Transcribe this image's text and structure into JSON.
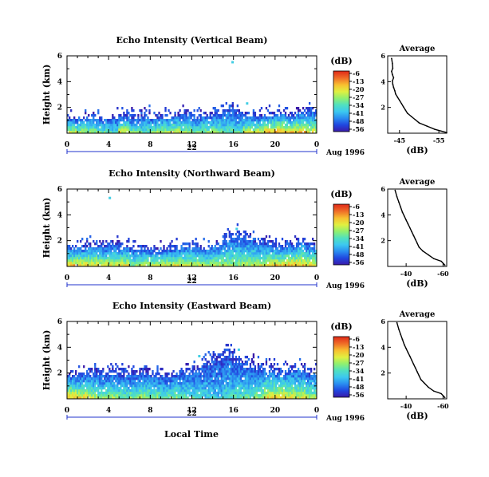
{
  "colors": {
    "background": "#ffffff",
    "axes": "#000000",
    "date_bar": "#2233cc",
    "colormap": [
      "#3a1aa8",
      "#2046e0",
      "#2a8cf0",
      "#3cc8f0",
      "#50e0c0",
      "#90f070",
      "#e0f040",
      "#f8c030",
      "#f07028",
      "#e02818"
    ]
  },
  "figure": {
    "date_label": "Aug 1996",
    "xlabel": "Local Time"
  },
  "chart_data": [
    {
      "type": "heatmap",
      "title": "Echo Intensity (Vertical Beam)",
      "ylabel": "Height (km)",
      "x_ticks": [
        "0",
        "4",
        "8",
        "12",
        "16",
        "20",
        "0"
      ],
      "xlim_hours": [
        0,
        24
      ],
      "y_ticks": [
        "2",
        "4",
        "6"
      ],
      "ylim_km": [
        0,
        6
      ],
      "day_label": "22",
      "colorbar": {
        "unit": "(dB)",
        "ticks": [
          "-6",
          "-13",
          "-20",
          "-27",
          "-34",
          "-41",
          "-48",
          "-56"
        ],
        "range": [
          -56,
          -6
        ]
      },
      "echo_top_km": [
        1.3,
        1.4,
        1.5,
        1.4,
        1.5,
        1.6,
        1.5,
        1.7,
        1.4,
        1.5,
        1.6,
        1.8,
        1.5,
        1.7,
        1.9,
        2.2,
        1.8,
        1.6,
        1.5,
        1.7,
        1.8,
        1.6,
        1.9,
        2.0
      ],
      "surface_peak_db": [
        -15,
        -18,
        -22,
        -25,
        -30,
        -14,
        -24,
        -28,
        -20,
        -18,
        -16,
        -22,
        -26,
        -22,
        -24,
        -28,
        -26,
        -16,
        -12,
        -8,
        -6,
        -8,
        -10,
        -14
      ],
      "sparse_echoes": [
        {
          "hour": 15.8,
          "km": 5.6
        },
        {
          "hour": 17.2,
          "km": 2.4
        }
      ],
      "average_profile": {
        "title": "Average",
        "xlabel": "(dB)",
        "x_ticks": [
          "-45",
          "-55"
        ],
        "xlim_db": [
          -42,
          -57
        ],
        "y_ticks": [
          "2",
          "4",
          "6"
        ],
        "ylim_km": [
          0,
          6
        ],
        "db": [
          -57,
          -54,
          -52,
          -50,
          -49,
          -48,
          -47,
          -46.5,
          -46,
          -45.5,
          -45,
          -44.5,
          -44,
          -43.8,
          -43.5,
          -43.3,
          -43.2,
          -43.5,
          -43.2,
          -43,
          -43.3,
          -43.2,
          -43
        ],
        "km": [
          0.05,
          0.3,
          0.55,
          0.8,
          1.05,
          1.3,
          1.55,
          1.8,
          2.05,
          2.3,
          2.55,
          2.8,
          3.05,
          3.3,
          3.55,
          3.8,
          4.05,
          4.3,
          4.55,
          4.8,
          5.05,
          5.4,
          5.8
        ]
      }
    },
    {
      "type": "heatmap",
      "title": "Echo Intensity (Northward Beam)",
      "ylabel": "Height (km)",
      "x_ticks": [
        "0",
        "4",
        "8",
        "12",
        "16",
        "20",
        "0"
      ],
      "xlim_hours": [
        0,
        24
      ],
      "y_ticks": [
        "2",
        "4",
        "6"
      ],
      "ylim_km": [
        0,
        6
      ],
      "day_label": "22",
      "colorbar": {
        "unit": "(dB)",
        "ticks": [
          "-6",
          "-13",
          "-20",
          "-27",
          "-34",
          "-41",
          "-48",
          "-56"
        ],
        "range": [
          -56,
          -6
        ]
      },
      "echo_top_km": [
        1.6,
        1.7,
        1.9,
        1.8,
        2.0,
        1.8,
        1.6,
        1.7,
        1.5,
        1.6,
        1.7,
        1.9,
        1.8,
        1.7,
        1.9,
        2.6,
        2.8,
        2.6,
        2.2,
        2.0,
        1.8,
        1.9,
        2.2,
        1.9
      ],
      "surface_peak_db": [
        -8,
        -10,
        -12,
        -14,
        -16,
        -14,
        -22,
        -18,
        -16,
        -15,
        -14,
        -16,
        -18,
        -20,
        -18,
        -22,
        -24,
        -20,
        -16,
        -14,
        -10,
        -8,
        -10,
        -12
      ],
      "sparse_echoes": [
        {
          "hour": 4.0,
          "km": 5.4
        },
        {
          "hour": 16.2,
          "km": 3.0
        }
      ],
      "average_profile": {
        "title": "Average",
        "xlabel": "(dB)",
        "x_ticks": [
          "-40",
          "-60"
        ],
        "xlim_db": [
          -30,
          -62
        ],
        "y_ticks": [
          "2",
          "4",
          "6"
        ],
        "ylim_km": [
          0,
          6
        ],
        "db": [
          -61,
          -59,
          -55,
          -52,
          -49,
          -47,
          -46,
          -45,
          -44,
          -43,
          -42,
          -41,
          -40,
          -39,
          -38,
          -37,
          -36,
          -35,
          -34
        ],
        "km": [
          0.1,
          0.4,
          0.6,
          0.9,
          1.2,
          1.5,
          1.8,
          2.1,
          2.4,
          2.7,
          3.0,
          3.3,
          3.6,
          3.9,
          4.2,
          4.6,
          5.0,
          5.4,
          5.9
        ]
      }
    },
    {
      "type": "heatmap",
      "title": "Echo Intensity (Eastward Beam)",
      "ylabel": "Height (km)",
      "x_ticks": [
        "0",
        "4",
        "8",
        "12",
        "16",
        "20",
        "0"
      ],
      "xlim_hours": [
        0,
        24
      ],
      "y_ticks": [
        "2",
        "4",
        "6"
      ],
      "ylim_km": [
        0,
        6
      ],
      "day_label": "22",
      "colorbar": {
        "unit": "(dB)",
        "ticks": [
          "-6",
          "-13",
          "-20",
          "-27",
          "-34",
          "-41",
          "-48",
          "-56"
        ],
        "range": [
          -56,
          -6
        ]
      },
      "echo_top_km": [
        2.1,
        2.2,
        2.3,
        2.2,
        2.4,
        2.3,
        2.2,
        2.3,
        2.1,
        2.0,
        2.2,
        2.4,
        2.6,
        3.2,
        3.5,
        3.8,
        3.4,
        3.0,
        2.8,
        2.6,
        2.4,
        2.5,
        2.7,
        2.3
      ],
      "surface_peak_db": [
        -10,
        -14,
        -20,
        -24,
        -22,
        -26,
        -24,
        -22,
        -24,
        -26,
        -24,
        -28,
        -30,
        -34,
        -36,
        -32,
        -30,
        -28,
        -24,
        -14,
        -12,
        -16,
        -18,
        -20
      ],
      "sparse_echoes": [
        {
          "hour": 12.6,
          "km": 3.4
        },
        {
          "hour": 16.4,
          "km": 3.9
        }
      ],
      "average_profile": {
        "title": "Average",
        "xlabel": "(dB)",
        "x_ticks": [
          "-40",
          "-60"
        ],
        "xlim_db": [
          -30,
          -62
        ],
        "y_ticks": [
          "2",
          "4",
          "6"
        ],
        "ylim_km": [
          0,
          6
        ],
        "db": [
          -61,
          -59,
          -55,
          -52,
          -50,
          -48,
          -47,
          -46,
          -45,
          -44,
          -43,
          -42,
          -41,
          -40,
          -39,
          -38,
          -37,
          -36,
          -35
        ],
        "km": [
          0.1,
          0.4,
          0.6,
          0.9,
          1.2,
          1.5,
          1.8,
          2.1,
          2.4,
          2.7,
          3.0,
          3.3,
          3.6,
          3.9,
          4.2,
          4.6,
          5.0,
          5.4,
          5.9
        ]
      }
    }
  ]
}
